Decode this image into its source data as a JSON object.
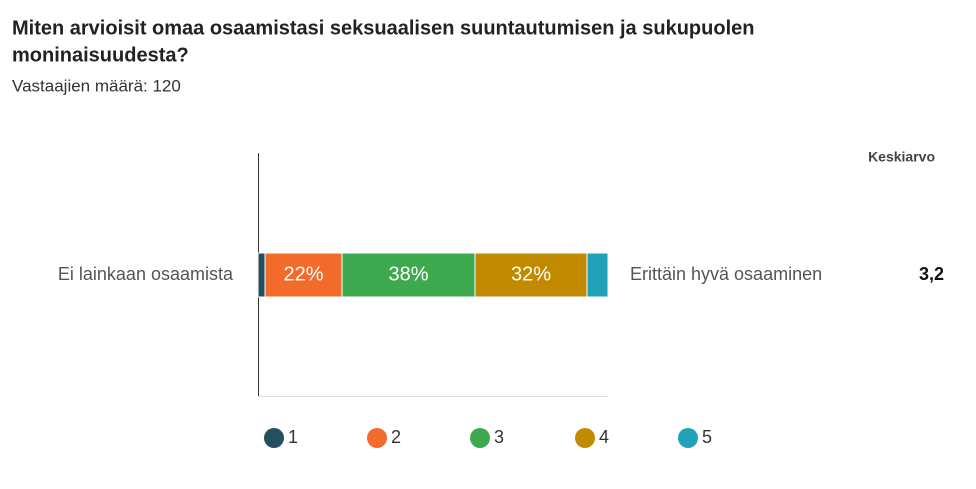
{
  "chart_data": {
    "type": "stacked_bar",
    "title_lines": [
      "Miten arvioisit omaa osaamistasi seksuaalisen suuntautumisen ja sukupuolen",
      "moninaisuudesta?"
    ],
    "subtitle": "Vastaajien määrä: 120",
    "categories": [
      "Ei lainkaan osaamista"
    ],
    "right_label": "Erittäin hyvä osaaminen",
    "mean_header": "Keskiarvo",
    "mean_label": "3,2",
    "xlim": [
      0,
      100
    ],
    "series": [
      {
        "name": "1",
        "color": "#234f5e",
        "values": [
          2
        ],
        "value_labels": [
          null
        ]
      },
      {
        "name": "2",
        "color": "#f26b2a",
        "values": [
          22
        ],
        "value_labels": [
          "22%"
        ]
      },
      {
        "name": "3",
        "color": "#3fa950",
        "values": [
          38
        ],
        "value_labels": [
          "38%"
        ]
      },
      {
        "name": "4",
        "color": "#c28a00",
        "values": [
          32
        ],
        "value_labels": [
          "32%"
        ]
      },
      {
        "name": "5",
        "color": "#22a2b8",
        "values": [
          6
        ],
        "value_labels": [
          null
        ]
      }
    ]
  }
}
